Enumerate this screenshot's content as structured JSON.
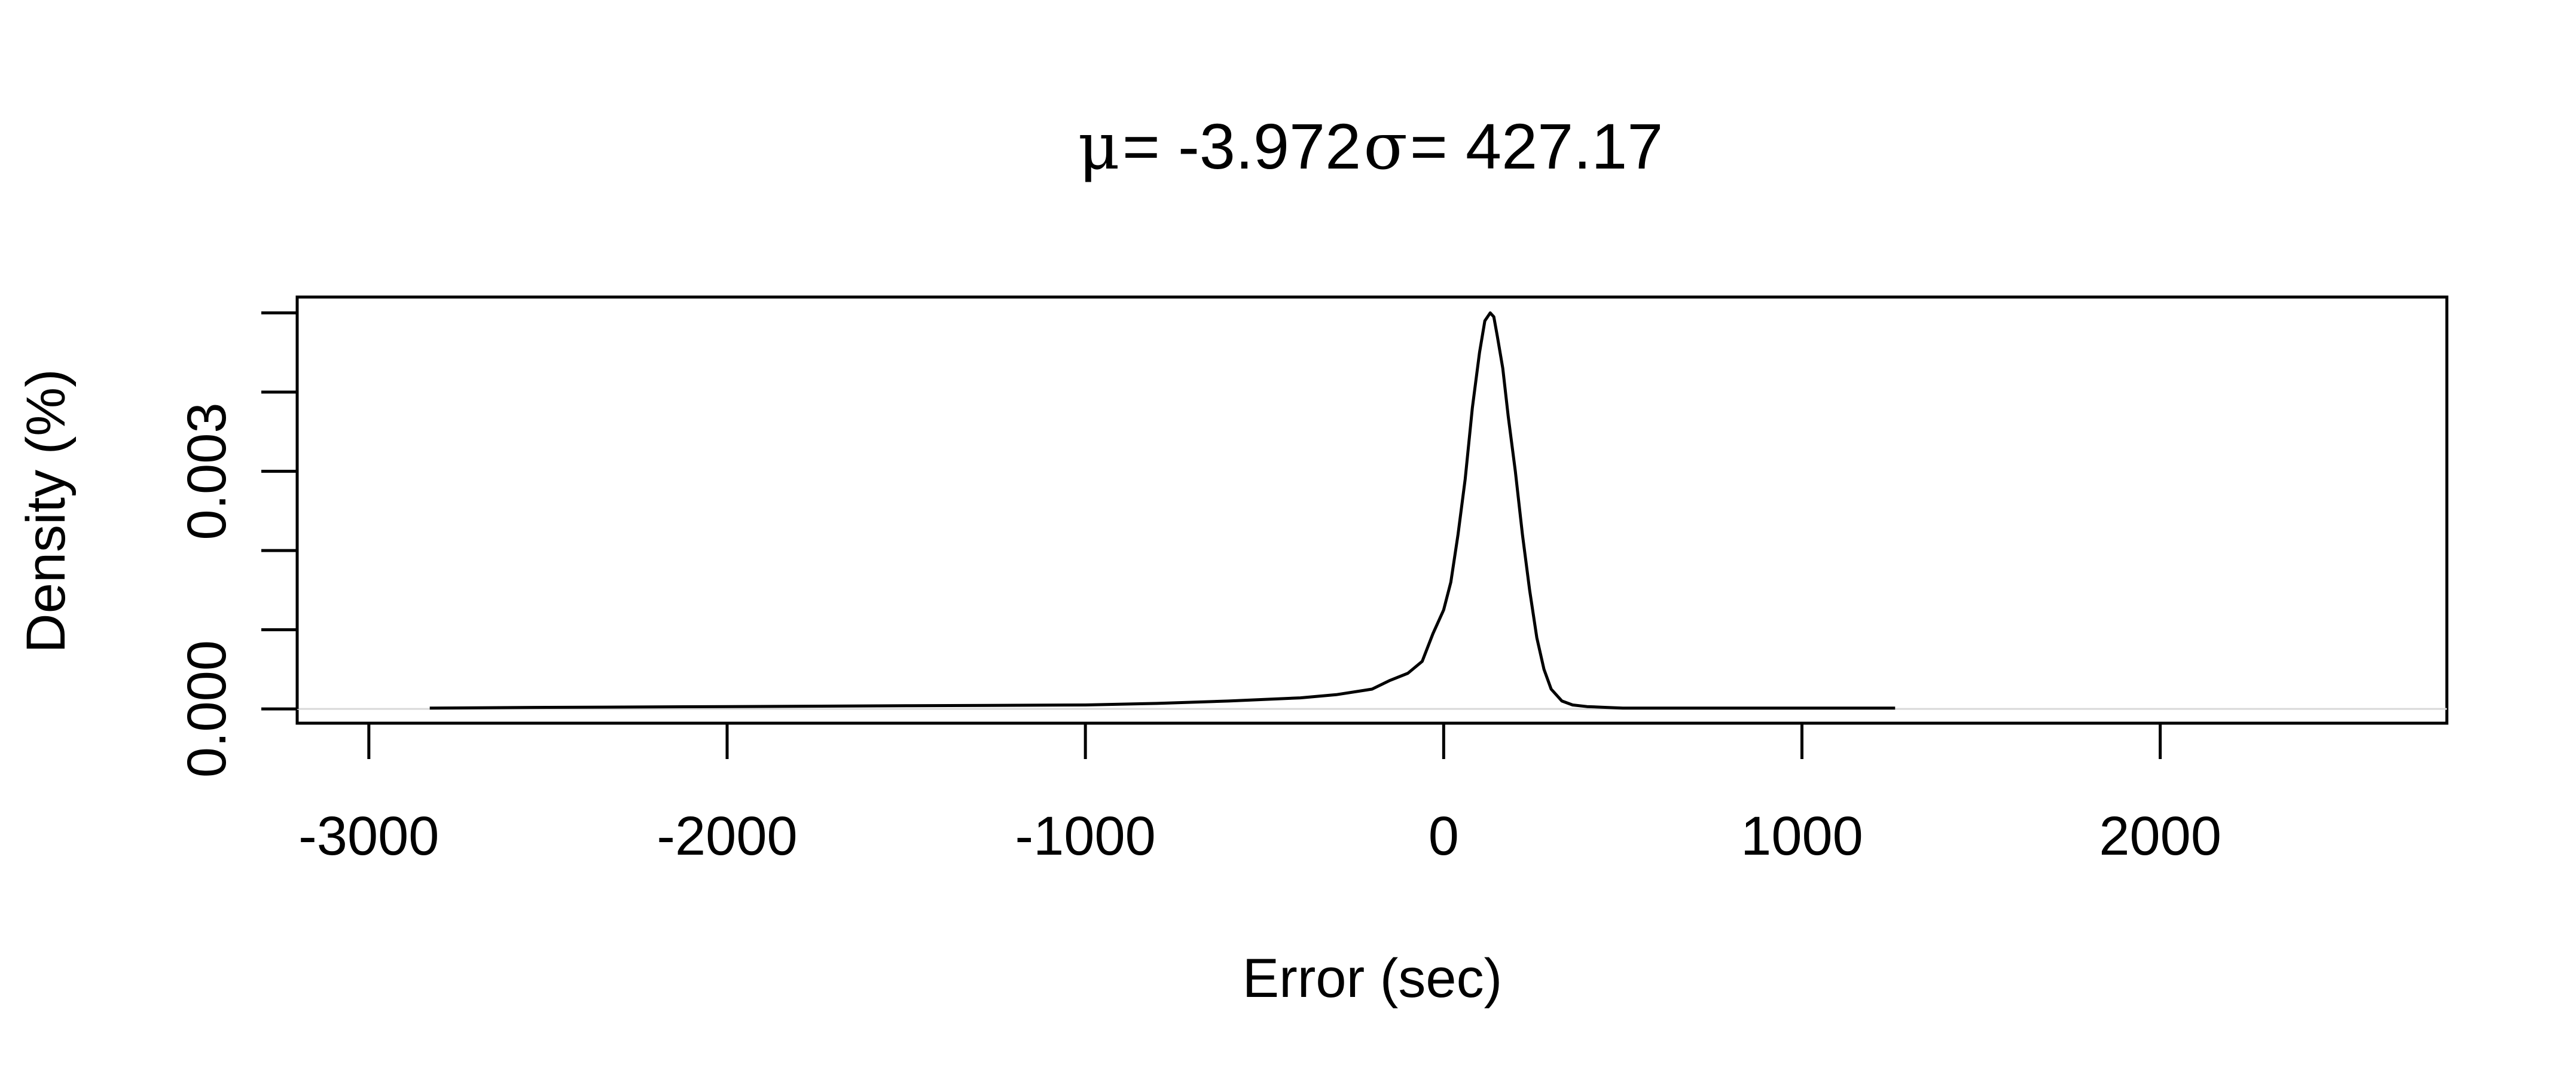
{
  "chart_data": {
    "type": "line",
    "title": {
      "mu_symbol": "μ",
      "mu_text": " = -3.972",
      "sigma_symbol": "σ",
      "sigma_text": " = 427.17"
    },
    "xlabel": "Error (sec)",
    "ylabel": "Density (%)",
    "xlim": [
      -3200,
      2800
    ],
    "ylim": [
      -0.00018,
      0.0052
    ],
    "x_ticks": [
      -3000,
      -2000,
      -1000,
      0,
      1000,
      2000
    ],
    "x_tick_labels": [
      "-3000",
      "-2000",
      "-1000",
      "0",
      "1000",
      "2000"
    ],
    "y_ticks": [
      0,
      0.001,
      0.002,
      0.003,
      0.004,
      0.005
    ],
    "y_tick_labels": [
      "0.000",
      "",
      "",
      "0.003",
      "",
      ""
    ],
    "grid": false,
    "legend": "none",
    "baseline_y": 0,
    "series": [
      {
        "x": [
          -2830,
          -2500,
          -2000,
          -1500,
          -1000,
          -800,
          -600,
          -400,
          -300,
          -200,
          -150,
          -100,
          -60,
          -30,
          0,
          20,
          40,
          60,
          80,
          100,
          115,
          130,
          140,
          150,
          165,
          180,
          200,
          220,
          240,
          260,
          280,
          300,
          330,
          360,
          400,
          450,
          500,
          600,
          800,
          1000,
          1260
        ],
        "y": [
          1e-05,
          2e-05,
          3e-05,
          4e-05,
          5e-05,
          7e-05,
          0.0001,
          0.00014,
          0.00018,
          0.00025,
          0.00036,
          0.00045,
          0.0006,
          0.00095,
          0.00125,
          0.0016,
          0.0022,
          0.0029,
          0.0038,
          0.0045,
          0.0049,
          0.005,
          0.00495,
          0.0047,
          0.0043,
          0.0037,
          0.003,
          0.0022,
          0.0015,
          0.0009,
          0.0005,
          0.00025,
          0.0001,
          5e-05,
          3e-05,
          2e-05,
          1e-05,
          1e-05,
          1e-05,
          1e-05,
          1e-05
        ]
      }
    ]
  }
}
